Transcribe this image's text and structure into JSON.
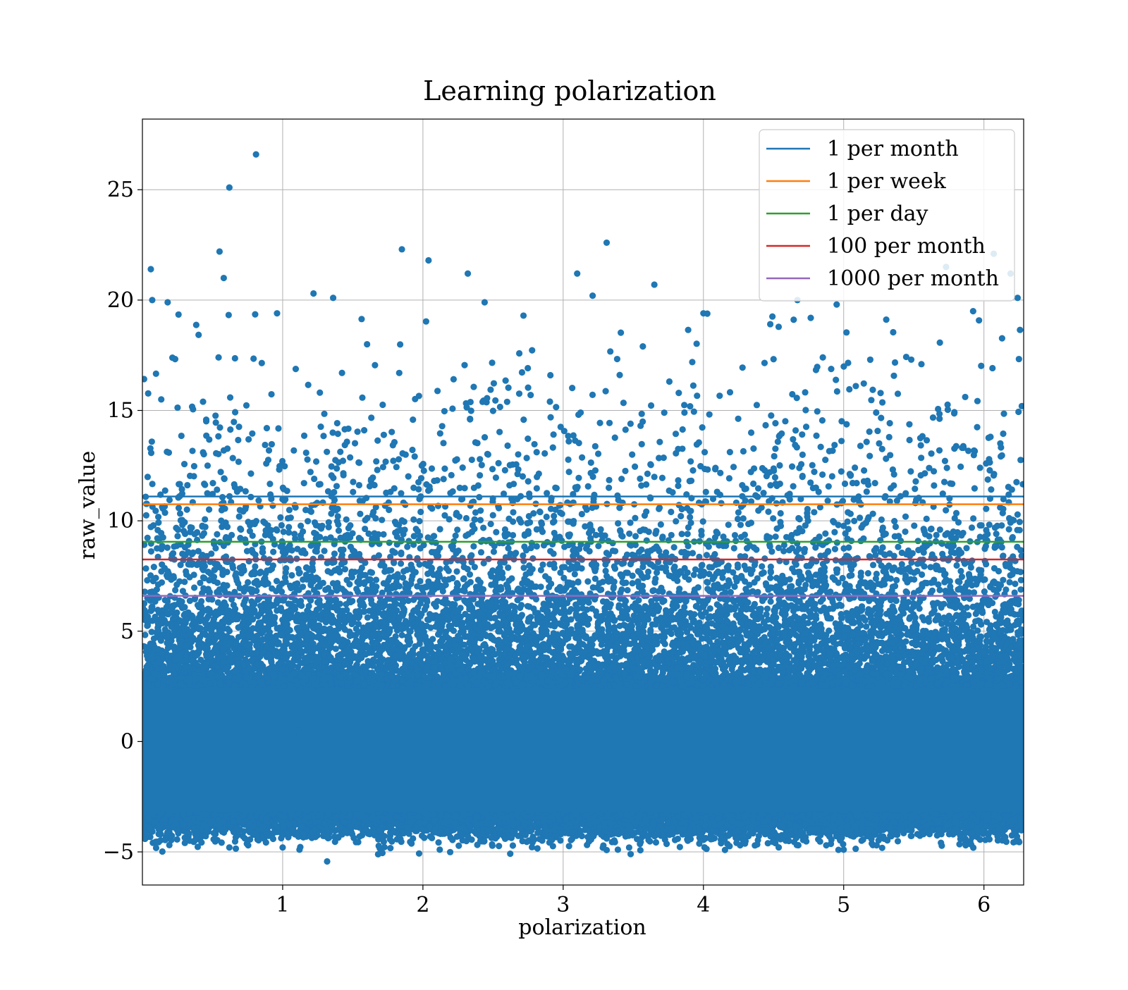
{
  "chart_data": {
    "type": "scatter",
    "title": "Learning polarization",
    "xlabel": "polarization",
    "ylabel": "raw_value",
    "xlim": [
      0.0,
      6.2832
    ],
    "ylim": [
      -6.5,
      28.2
    ],
    "xticks": [
      1,
      2,
      3,
      4,
      5,
      6
    ],
    "xtick_labels": [
      "1",
      "2",
      "3",
      "4",
      "5",
      "6"
    ],
    "yticks": [
      -5,
      0,
      5,
      10,
      15,
      20,
      25
    ],
    "ytick_labels": [
      "−5",
      "0",
      "5",
      "10",
      "15",
      "20",
      "25"
    ],
    "grid": true,
    "legend_position": "top-right",
    "scatter_series": {
      "color": "#1f77b4",
      "description": "dense cloud of points uniformly spread over polarization 0 to 2π, concentrated between about -4 and 4 with a tail extending upward to about 26.6",
      "outliers": [
        {
          "x": 0.81,
          "y": 26.6
        },
        {
          "x": 0.62,
          "y": 25.1
        },
        {
          "x": 3.31,
          "y": 22.6
        },
        {
          "x": 1.85,
          "y": 22.3
        },
        {
          "x": 0.55,
          "y": 22.2
        },
        {
          "x": 2.04,
          "y": 21.8
        },
        {
          "x": 6.07,
          "y": 22.1
        },
        {
          "x": 6.19,
          "y": 21.2
        },
        {
          "x": 0.06,
          "y": 21.4
        },
        {
          "x": 2.32,
          "y": 21.2
        },
        {
          "x": 3.1,
          "y": 21.2
        },
        {
          "x": 0.58,
          "y": 21.0
        },
        {
          "x": 3.65,
          "y": 20.7
        },
        {
          "x": 5.73,
          "y": 21.5
        },
        {
          "x": 0.07,
          "y": 20.0
        },
        {
          "x": 0.18,
          "y": 19.9
        },
        {
          "x": 1.22,
          "y": 20.3
        },
        {
          "x": 1.36,
          "y": 20.1
        },
        {
          "x": 4.67,
          "y": 20.0
        },
        {
          "x": 6.24,
          "y": 20.1
        },
        {
          "x": 0.96,
          "y": 19.4
        },
        {
          "x": 2.44,
          "y": 19.9
        },
        {
          "x": 3.21,
          "y": 20.2
        },
        {
          "x": 4.0,
          "y": 19.4
        },
        {
          "x": 4.95,
          "y": 19.8
        },
        {
          "x": 1.11,
          "y": 0.5
        },
        {
          "x": 2.12,
          "y": -4.9
        },
        {
          "x": 1.12,
          "y": -4.9
        },
        {
          "x": 3.39,
          "y": -4.9
        },
        {
          "x": 5.0,
          "y": -4.9
        },
        {
          "x": 0.62,
          "y": -4.8
        },
        {
          "x": 5.87,
          "y": -4.7
        }
      ]
    },
    "reference_lines": [
      {
        "name": "1 per month",
        "y": 11.1,
        "color": "#1f77b4"
      },
      {
        "name": "1 per week",
        "y": 10.75,
        "color": "#ff7f0e"
      },
      {
        "name": "1 per day",
        "y": 9.05,
        "color": "#2ca02c"
      },
      {
        "name": "100 per month",
        "y": 8.25,
        "color": "#d62728"
      },
      {
        "name": "1000 per month",
        "y": 6.6,
        "color": "#9467bd"
      }
    ]
  }
}
